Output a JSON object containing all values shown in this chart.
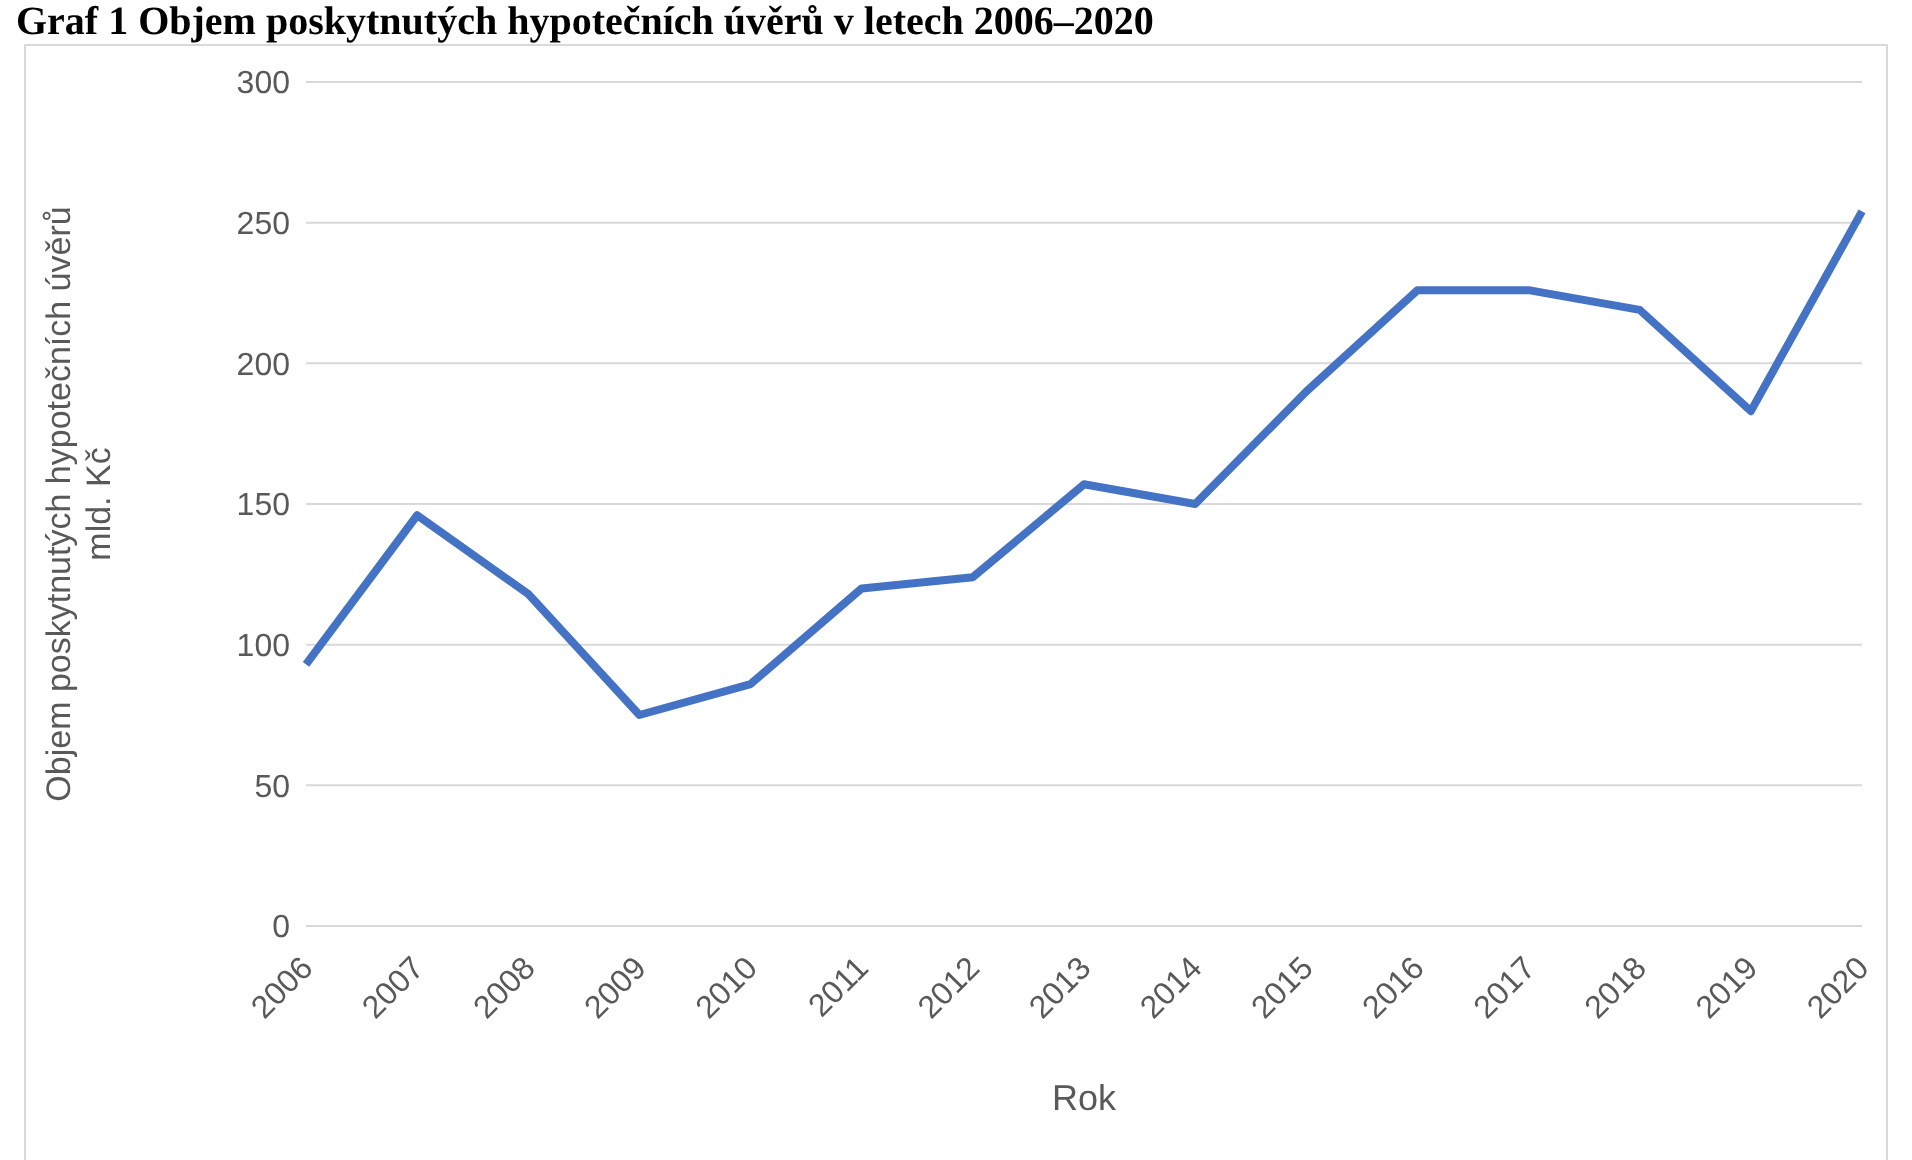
{
  "chart_data": {
    "type": "line",
    "title": "Graf 1 Objem poskytnutých hypotečních úvěrů v letech 2006–2020",
    "xlabel": "Rok",
    "ylabel": "Objem poskytnutých  hypotečních úvěrů\nmld. Kč",
    "categories": [
      "2006",
      "2007",
      "2008",
      "2009",
      "2010",
      "2011",
      "2012",
      "2013",
      "2014",
      "2015",
      "2016",
      "2017",
      "2018",
      "2019",
      "2020"
    ],
    "series": [
      {
        "color": "#4472c4",
        "values": [
          93,
          146,
          118,
          75,
          86,
          120,
          124,
          157,
          150,
          190,
          226,
          226,
          219,
          183,
          254
        ]
      }
    ],
    "ylim": [
      0,
      300
    ],
    "yticks": [
      0,
      50,
      100,
      150,
      200,
      250,
      300
    ],
    "grid": "y",
    "legend": false,
    "marker": "none",
    "line_style": "solid"
  }
}
